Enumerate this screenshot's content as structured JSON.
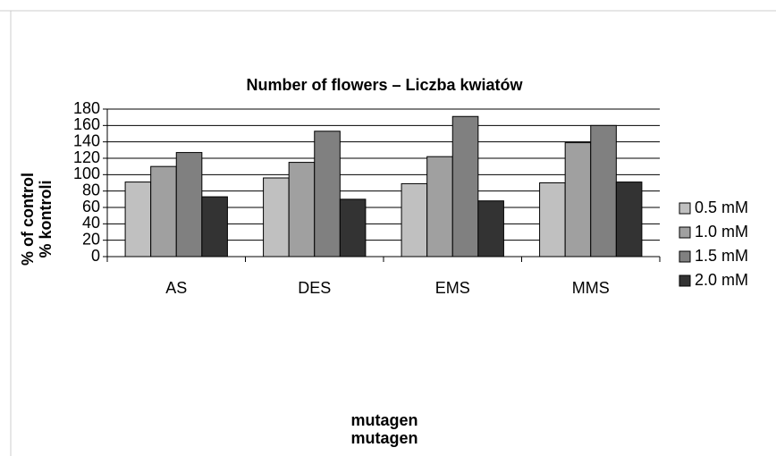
{
  "chart_data": {
    "type": "bar",
    "title": "Number of flowers – Liczba kwiatów",
    "ylabel": [
      "% of control",
      "% kontroli"
    ],
    "xlabel": [
      "mutagen",
      "mutagen"
    ],
    "categories": [
      "AS",
      "DES",
      "EMS",
      "MMS"
    ],
    "series": [
      {
        "name": "0.5 mM",
        "color": "#c0c0c0",
        "values": [
          91,
          96,
          89,
          90
        ]
      },
      {
        "name": "1.0 mM",
        "color": "#a0a0a0",
        "values": [
          110,
          115,
          122,
          139
        ]
      },
      {
        "name": "1.5 mM",
        "color": "#808080",
        "values": [
          127,
          153,
          171,
          160
        ]
      },
      {
        "name": "2.0 mM",
        "color": "#333333",
        "values": [
          73,
          70,
          68,
          91
        ]
      }
    ],
    "ylim": [
      0,
      180
    ],
    "yticks": [
      0,
      20,
      40,
      60,
      80,
      100,
      120,
      140,
      160,
      180
    ],
    "grid": true,
    "legend": "right"
  }
}
